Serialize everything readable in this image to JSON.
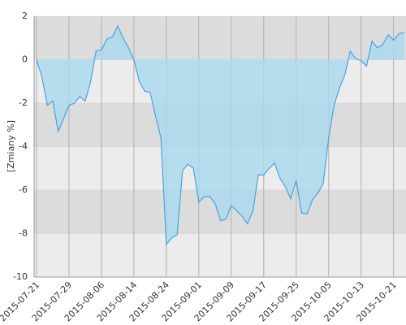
{
  "chart_data": {
    "type": "area",
    "y_label": "[Zmiany %]",
    "categories": [
      "2015-07-21",
      null,
      null,
      null,
      null,
      null,
      "2015-07-29",
      null,
      null,
      null,
      null,
      null,
      "2015-08-06",
      null,
      null,
      null,
      null,
      null,
      "2015-08-14",
      null,
      null,
      null,
      null,
      null,
      "2015-08-24",
      null,
      null,
      null,
      null,
      null,
      "2015-09-01",
      null,
      null,
      null,
      null,
      null,
      "2015-09-09",
      null,
      null,
      null,
      null,
      null,
      "2015-09-17",
      null,
      null,
      null,
      null,
      null,
      "2015-09-25",
      null,
      null,
      null,
      null,
      null,
      "2015-10-05",
      null,
      null,
      null,
      null,
      null,
      "2015-10-13",
      null,
      null,
      null,
      null,
      null,
      "2015-10-21",
      null,
      null
    ],
    "values": [
      0,
      -0.8,
      -2.1,
      -1.9,
      -3.3,
      -2.7,
      -2.1,
      -2.0,
      -1.7,
      -1.9,
      -1.0,
      0.4,
      0.45,
      0.95,
      1.05,
      1.55,
      1.0,
      0.55,
      0.0,
      -1.0,
      -1.45,
      -1.5,
      -2.6,
      -3.6,
      -8.5,
      -8.2,
      -8.05,
      -5.1,
      -4.8,
      -5.0,
      -6.55,
      -6.3,
      -6.3,
      -6.6,
      -7.4,
      -7.35,
      -6.7,
      -6.95,
      -7.2,
      -7.55,
      -6.95,
      -5.3,
      -5.3,
      -5.0,
      -4.75,
      -5.45,
      -5.85,
      -6.4,
      -5.55,
      -7.05,
      -7.1,
      -6.45,
      -6.15,
      -5.7,
      -3.6,
      -2.1,
      -1.3,
      -0.7,
      0.4,
      0.05,
      -0.05,
      -0.3,
      0.85,
      0.55,
      0.7,
      1.15,
      0.9,
      1.2,
      1.25
    ],
    "color": "#4aa3df",
    "fill_color": "#a9d9ee",
    "band_colors": [
      "#ececec",
      "#dcdcdc"
    ],
    "ylim": [
      -10,
      2
    ],
    "yticks": [
      -10,
      -8,
      -6,
      -4,
      -2,
      0,
      2
    ],
    "grid": true
  }
}
